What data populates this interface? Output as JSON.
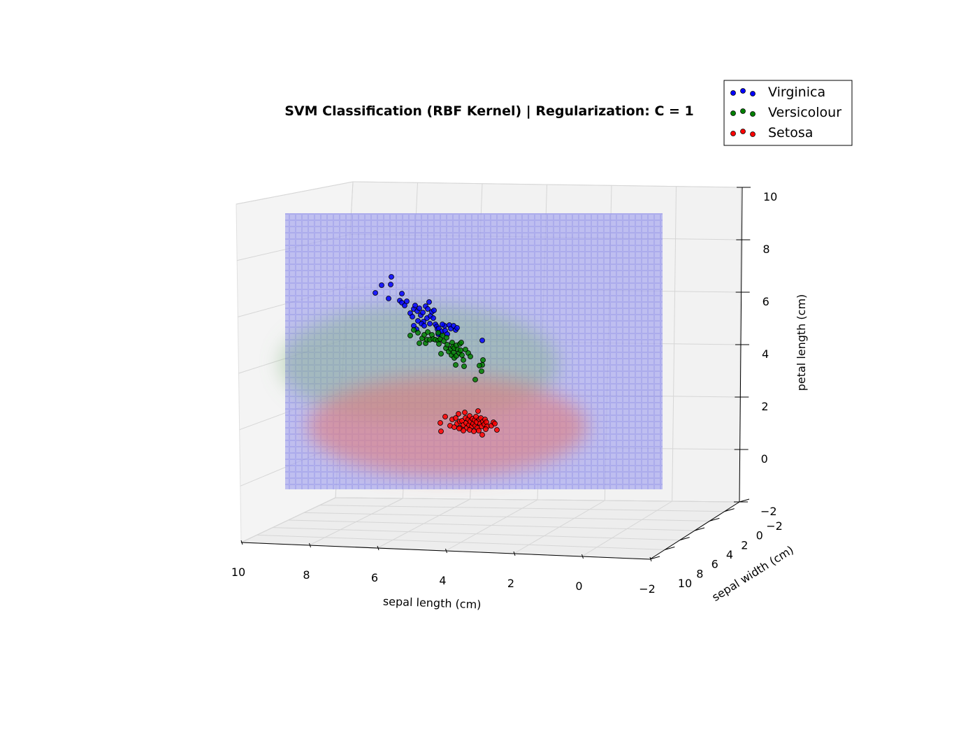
{
  "chart_data": {
    "type": "scatter",
    "title": "SVM Classification (RBF Kernel) | Regularization: C = 1",
    "xlabel": "sepal length (cm)",
    "ylabel": "sepal width (cm)",
    "zlabel": "petal length (cm)",
    "xticks": [
      "10",
      "8",
      "6",
      "4",
      "2",
      "0",
      "−2"
    ],
    "yticks": [
      "10",
      "8",
      "6",
      "4",
      "2",
      "0",
      "−2"
    ],
    "zticks": [
      "10",
      "8",
      "6",
      "4",
      "2",
      "0",
      "−2"
    ],
    "xlim": [
      -2,
      10
    ],
    "ylim": [
      -2,
      10
    ],
    "zlim": [
      -2,
      10
    ],
    "legend_position": "top-right",
    "grid": true,
    "series": [
      {
        "name": "Virginica",
        "color": "#0000ff"
      },
      {
        "name": "Versicolour",
        "color": "#008000"
      },
      {
        "name": "Setosa",
        "color": "#ff0000"
      }
    ],
    "decision_regions": [
      {
        "class": "Virginica",
        "color": "#0000ff",
        "description": "fills most of the grid volume"
      },
      {
        "class": "Versicolour",
        "color": "#008000",
        "description": "band around petal length 2-5"
      },
      {
        "class": "Setosa",
        "color": "#ff0000",
        "description": "lower region around petal length -1 to 2"
      }
    ]
  }
}
